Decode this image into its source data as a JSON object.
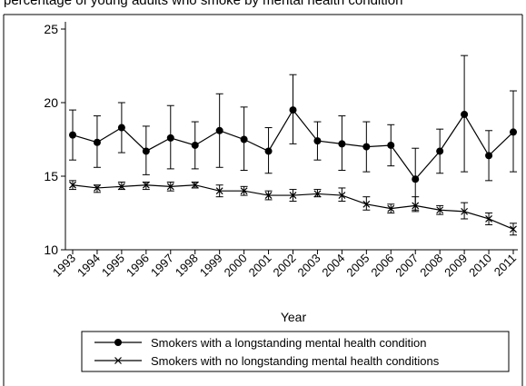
{
  "header_text": "percentage of young adults who smoke by mental health condition",
  "chart_data": {
    "type": "line",
    "title": "",
    "xlabel": "Year",
    "ylabel": "",
    "ylim": [
      10,
      25
    ],
    "yticks": [
      10,
      15,
      20,
      25
    ],
    "grid": false,
    "legend_position": "bottom",
    "categories": [
      "1993",
      "1994",
      "1995",
      "1996",
      "1997",
      "1998",
      "1999",
      "2000",
      "2001",
      "2002",
      "2003",
      "2004",
      "2005",
      "2006",
      "2007",
      "2008",
      "2009",
      "2010",
      "2011"
    ],
    "series": [
      {
        "name": "Smokers with a longstanding mental health condition",
        "marker": "circle",
        "color": "#000000",
        "values": [
          17.8,
          17.3,
          18.3,
          16.7,
          17.6,
          17.1,
          18.1,
          17.5,
          16.7,
          19.5,
          17.4,
          17.2,
          17.0,
          17.1,
          14.8,
          16.7,
          19.2,
          16.4,
          18.0
        ],
        "lower": [
          16.1,
          15.6,
          16.6,
          15.1,
          15.5,
          15.5,
          15.6,
          15.4,
          15.2,
          17.2,
          16.1,
          15.4,
          15.3,
          15.7,
          12.7,
          15.2,
          15.3,
          14.7,
          15.3
        ],
        "upper": [
          19.5,
          19.1,
          20.0,
          18.4,
          19.8,
          18.7,
          20.6,
          19.7,
          18.3,
          21.9,
          18.7,
          19.1,
          18.7,
          18.5,
          16.9,
          18.2,
          23.2,
          18.1,
          20.8
        ]
      },
      {
        "name": "Smokers with no longstanding mental health conditions",
        "marker": "x",
        "color": "#000000",
        "values": [
          14.4,
          14.2,
          14.3,
          14.4,
          14.3,
          14.4,
          14.0,
          14.0,
          13.7,
          13.7,
          13.8,
          13.7,
          13.1,
          12.8,
          13.0,
          12.7,
          12.6,
          12.1,
          11.4
        ],
        "lower": [
          14.1,
          13.9,
          14.1,
          14.1,
          14.0,
          14.2,
          13.6,
          13.7,
          13.4,
          13.3,
          13.6,
          13.3,
          12.7,
          12.5,
          12.6,
          12.4,
          12.1,
          11.7,
          11.0
        ],
        "upper": [
          14.7,
          14.4,
          14.6,
          14.6,
          14.6,
          14.6,
          14.4,
          14.3,
          14.0,
          14.1,
          14.1,
          14.2,
          13.6,
          13.1,
          13.6,
          13.0,
          13.2,
          12.5,
          11.8
        ]
      }
    ]
  }
}
